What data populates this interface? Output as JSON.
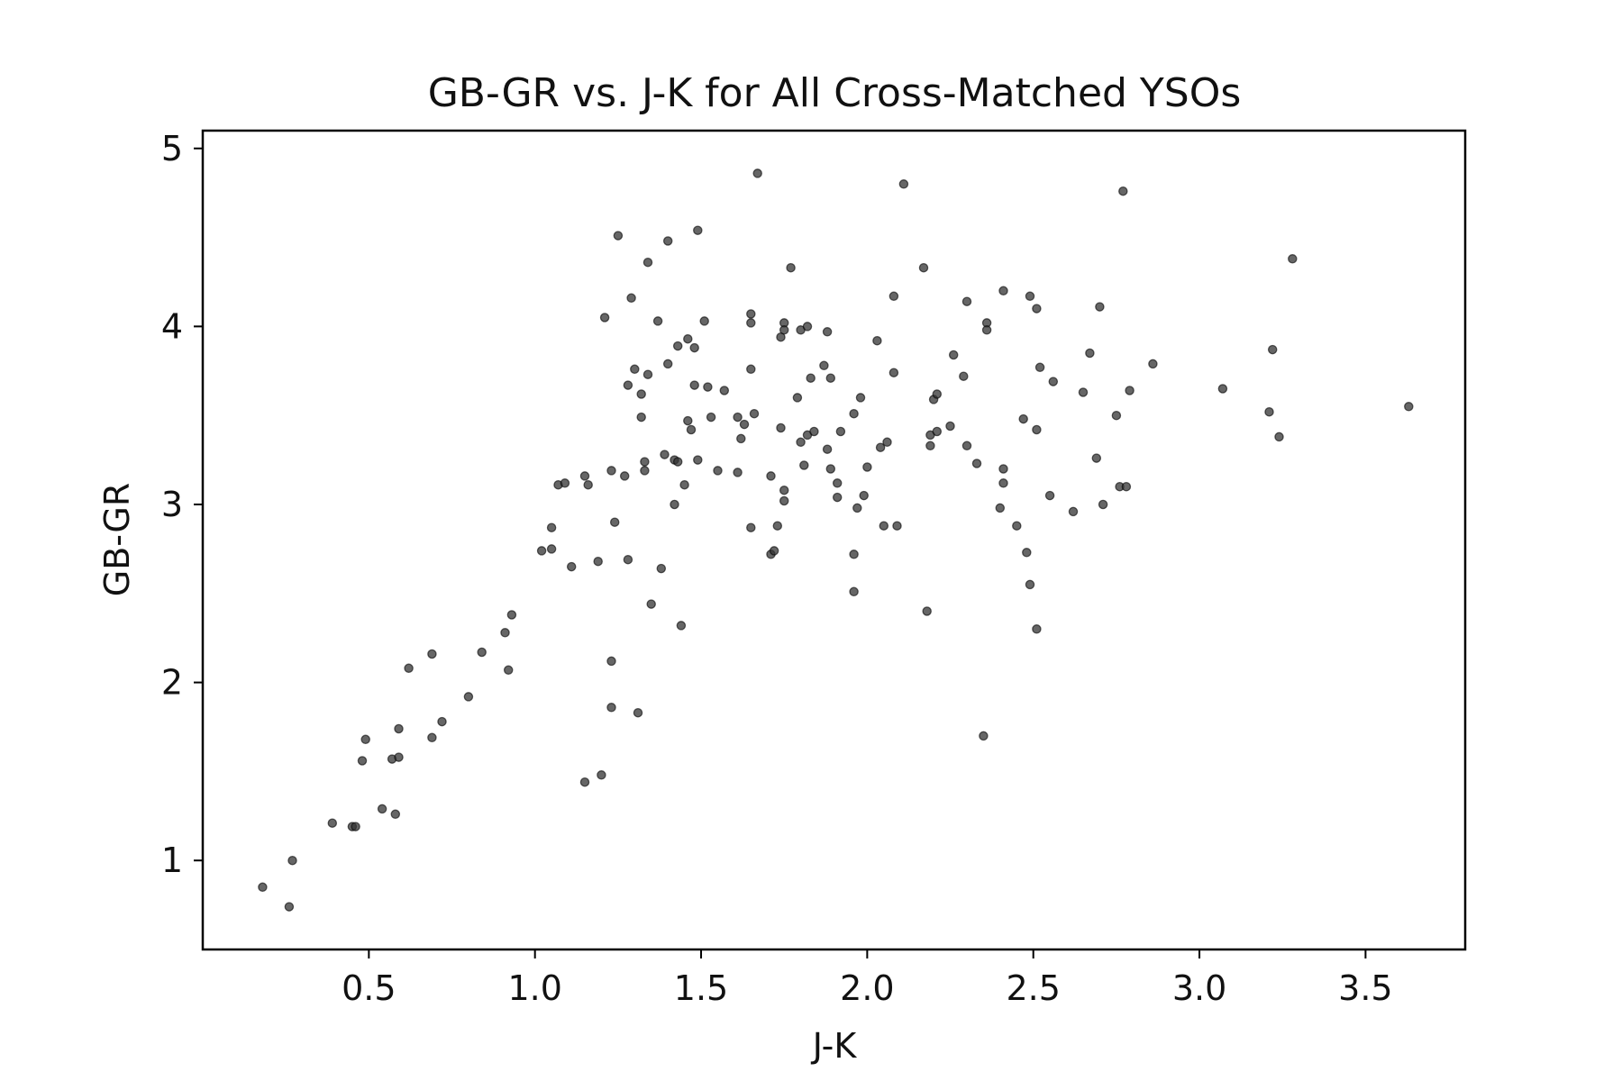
{
  "chart_data": {
    "type": "scatter",
    "title": "GB-GR vs.  J-K for All Cross-Matched YSOs",
    "xlabel": "J-K",
    "ylabel": "GB-GR",
    "xlim": [
      0.0,
      3.8
    ],
    "ylim": [
      0.5,
      5.1
    ],
    "xticks": [
      0.5,
      1.0,
      1.5,
      2.0,
      2.5,
      3.0,
      3.5
    ],
    "xtick_labels": [
      "0.5",
      "1.0",
      "1.5",
      "2.0",
      "2.5",
      "3.0",
      "3.5"
    ],
    "yticks": [
      1,
      2,
      3,
      4,
      5
    ],
    "ytick_labels": [
      "1",
      "2",
      "3",
      "4",
      "5"
    ],
    "grid": false,
    "marker_color": "#333333",
    "series": [
      {
        "points": [
          [
            0.18,
            0.85
          ],
          [
            0.26,
            0.74
          ],
          [
            0.27,
            1.0
          ],
          [
            0.39,
            1.21
          ],
          [
            0.45,
            1.19
          ],
          [
            0.46,
            1.19
          ],
          [
            0.48,
            1.56
          ],
          [
            0.49,
            1.68
          ],
          [
            0.54,
            1.29
          ],
          [
            0.57,
            1.57
          ],
          [
            0.58,
            1.26
          ],
          [
            0.59,
            1.74
          ],
          [
            0.59,
            1.58
          ],
          [
            0.62,
            2.08
          ],
          [
            0.69,
            2.16
          ],
          [
            0.69,
            1.69
          ],
          [
            0.72,
            1.78
          ],
          [
            0.8,
            1.92
          ],
          [
            0.84,
            2.17
          ],
          [
            0.91,
            2.28
          ],
          [
            0.92,
            2.07
          ],
          [
            0.93,
            2.38
          ],
          [
            1.02,
            2.74
          ],
          [
            1.05,
            2.75
          ],
          [
            1.05,
            2.87
          ],
          [
            1.07,
            3.11
          ],
          [
            1.09,
            3.12
          ],
          [
            1.11,
            2.65
          ],
          [
            1.15,
            3.16
          ],
          [
            1.15,
            1.44
          ],
          [
            1.16,
            3.11
          ],
          [
            1.19,
            2.68
          ],
          [
            1.2,
            1.48
          ],
          [
            1.21,
            4.05
          ],
          [
            1.23,
            3.19
          ],
          [
            1.23,
            2.12
          ],
          [
            1.23,
            1.86
          ],
          [
            1.24,
            2.9
          ],
          [
            1.25,
            4.51
          ],
          [
            1.27,
            3.16
          ],
          [
            1.28,
            2.69
          ],
          [
            1.28,
            3.67
          ],
          [
            1.29,
            4.16
          ],
          [
            1.3,
            3.76
          ],
          [
            1.31,
            1.83
          ],
          [
            1.32,
            3.49
          ],
          [
            1.32,
            3.62
          ],
          [
            1.33,
            3.24
          ],
          [
            1.33,
            3.19
          ],
          [
            1.34,
            4.36
          ],
          [
            1.34,
            3.73
          ],
          [
            1.35,
            2.44
          ],
          [
            1.37,
            4.03
          ],
          [
            1.38,
            2.64
          ],
          [
            1.39,
            3.28
          ],
          [
            1.4,
            3.79
          ],
          [
            1.4,
            4.48
          ],
          [
            1.42,
            3.0
          ],
          [
            1.42,
            3.25
          ],
          [
            1.43,
            3.24
          ],
          [
            1.43,
            3.89
          ],
          [
            1.44,
            2.32
          ],
          [
            1.45,
            3.11
          ],
          [
            1.46,
            3.93
          ],
          [
            1.46,
            3.47
          ],
          [
            1.47,
            3.42
          ],
          [
            1.48,
            3.88
          ],
          [
            1.48,
            3.67
          ],
          [
            1.49,
            4.54
          ],
          [
            1.49,
            3.25
          ],
          [
            1.51,
            4.03
          ],
          [
            1.52,
            3.66
          ],
          [
            1.53,
            3.49
          ],
          [
            1.55,
            3.19
          ],
          [
            1.57,
            3.64
          ],
          [
            1.61,
            3.49
          ],
          [
            1.61,
            3.18
          ],
          [
            1.62,
            3.37
          ],
          [
            1.63,
            3.45
          ],
          [
            1.65,
            4.07
          ],
          [
            1.65,
            4.02
          ],
          [
            1.65,
            3.76
          ],
          [
            1.65,
            2.87
          ],
          [
            1.66,
            3.51
          ],
          [
            1.67,
            4.86
          ],
          [
            1.71,
            3.16
          ],
          [
            1.71,
            2.72
          ],
          [
            1.72,
            2.74
          ],
          [
            1.73,
            2.88
          ],
          [
            1.74,
            3.94
          ],
          [
            1.74,
            3.43
          ],
          [
            1.75,
            4.02
          ],
          [
            1.75,
            3.98
          ],
          [
            1.75,
            3.08
          ],
          [
            1.75,
            3.02
          ],
          [
            1.77,
            4.33
          ],
          [
            1.79,
            3.6
          ],
          [
            1.8,
            3.98
          ],
          [
            1.8,
            3.35
          ],
          [
            1.81,
            3.22
          ],
          [
            1.82,
            4.0
          ],
          [
            1.82,
            3.39
          ],
          [
            1.83,
            3.71
          ],
          [
            1.84,
            3.41
          ],
          [
            1.87,
            3.78
          ],
          [
            1.88,
            3.31
          ],
          [
            1.88,
            3.97
          ],
          [
            1.89,
            3.71
          ],
          [
            1.89,
            3.2
          ],
          [
            1.91,
            3.04
          ],
          [
            1.91,
            3.12
          ],
          [
            1.92,
            3.41
          ],
          [
            1.96,
            3.51
          ],
          [
            1.96,
            2.51
          ],
          [
            1.96,
            2.72
          ],
          [
            1.97,
            2.98
          ],
          [
            1.98,
            3.6
          ],
          [
            1.99,
            3.05
          ],
          [
            2.0,
            3.21
          ],
          [
            2.03,
            3.92
          ],
          [
            2.04,
            3.32
          ],
          [
            2.05,
            2.88
          ],
          [
            2.06,
            3.35
          ],
          [
            2.08,
            4.17
          ],
          [
            2.08,
            3.74
          ],
          [
            2.09,
            2.88
          ],
          [
            2.11,
            4.8
          ],
          [
            2.17,
            4.33
          ],
          [
            2.18,
            2.4
          ],
          [
            2.19,
            3.33
          ],
          [
            2.19,
            3.39
          ],
          [
            2.2,
            3.59
          ],
          [
            2.21,
            3.62
          ],
          [
            2.21,
            3.41
          ],
          [
            2.25,
            3.44
          ],
          [
            2.26,
            3.84
          ],
          [
            2.29,
            3.72
          ],
          [
            2.3,
            4.14
          ],
          [
            2.3,
            3.33
          ],
          [
            2.33,
            3.23
          ],
          [
            2.35,
            1.7
          ],
          [
            2.36,
            4.02
          ],
          [
            2.36,
            3.98
          ],
          [
            2.4,
            2.98
          ],
          [
            2.41,
            4.2
          ],
          [
            2.41,
            3.2
          ],
          [
            2.41,
            3.12
          ],
          [
            2.45,
            2.88
          ],
          [
            2.47,
            3.48
          ],
          [
            2.48,
            2.73
          ],
          [
            2.49,
            4.17
          ],
          [
            2.49,
            2.55
          ],
          [
            2.51,
            4.1
          ],
          [
            2.51,
            3.42
          ],
          [
            2.51,
            2.3
          ],
          [
            2.52,
            3.77
          ],
          [
            2.55,
            3.05
          ],
          [
            2.56,
            3.69
          ],
          [
            2.62,
            2.96
          ],
          [
            2.65,
            3.63
          ],
          [
            2.67,
            3.85
          ],
          [
            2.69,
            3.26
          ],
          [
            2.7,
            4.11
          ],
          [
            2.71,
            3.0
          ],
          [
            2.75,
            3.5
          ],
          [
            2.76,
            3.1
          ],
          [
            2.77,
            4.76
          ],
          [
            2.78,
            3.1
          ],
          [
            2.79,
            3.64
          ],
          [
            2.86,
            3.79
          ],
          [
            3.07,
            3.65
          ],
          [
            3.21,
            3.52
          ],
          [
            3.22,
            3.87
          ],
          [
            3.24,
            3.38
          ],
          [
            3.28,
            4.38
          ],
          [
            3.63,
            3.55
          ]
        ]
      }
    ]
  }
}
